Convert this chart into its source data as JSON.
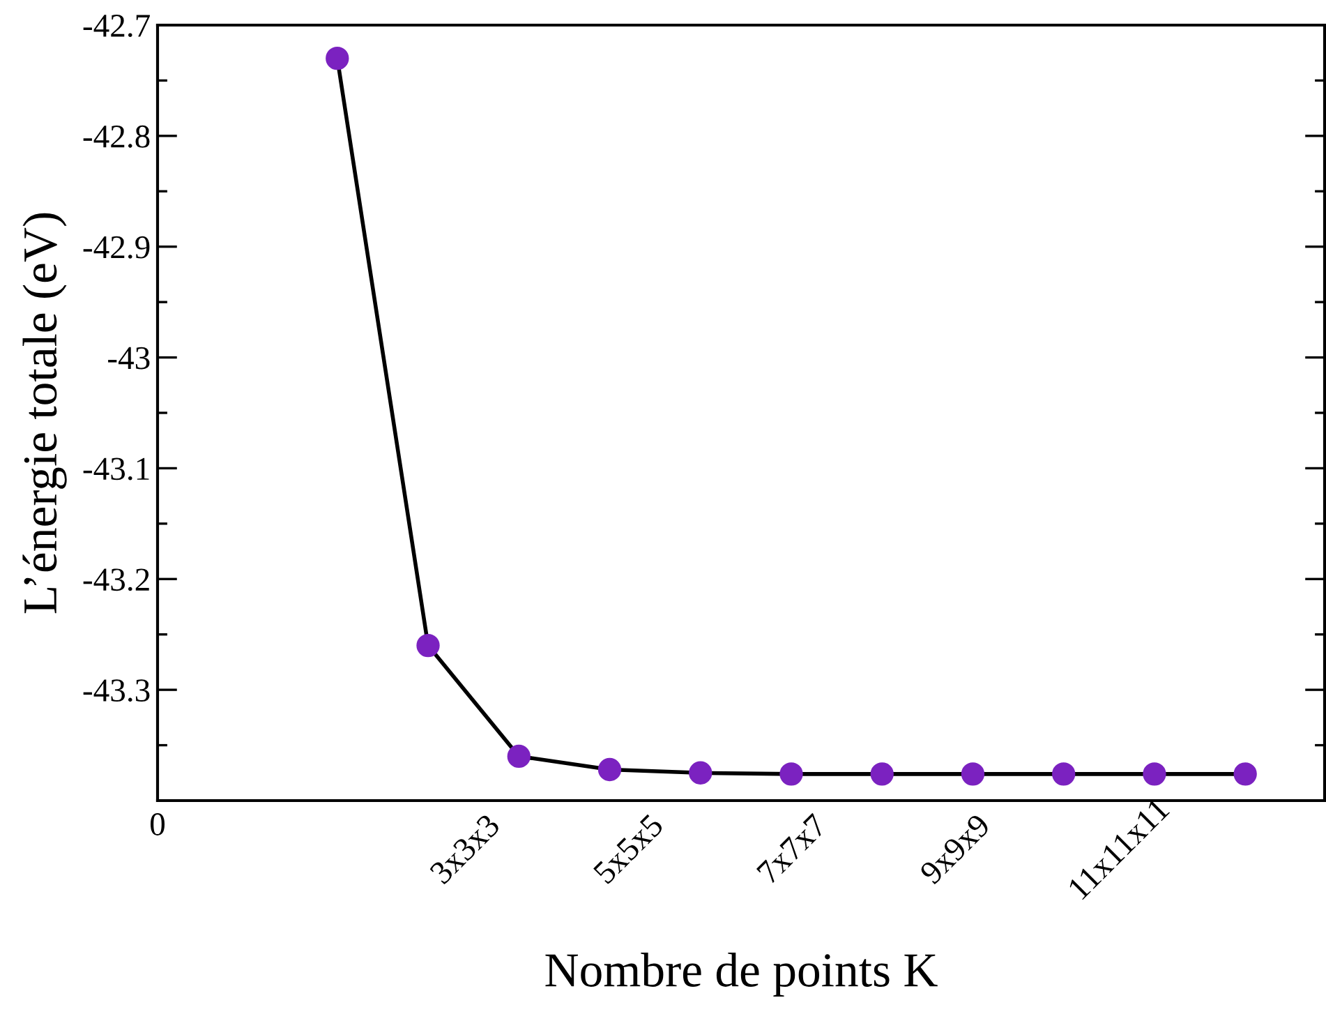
{
  "chart_data": {
    "type": "line",
    "xlabel": "Nombre de points K",
    "ylabel": "L’énergie totale (eV)",
    "categories": [
      null,
      null,
      null,
      null,
      null,
      null,
      null,
      null,
      null,
      null,
      null
    ],
    "series": [
      {
        "color": "#7b22c0",
        "values": [
          -42.73,
          -43.26,
          -43.36,
          -43.372,
          -43.375,
          -43.376,
          -43.376,
          -43.376,
          -43.376,
          -43.376,
          -43.376
        ]
      }
    ],
    "ylim": [
      -43.4,
      -42.7
    ],
    "yticks": [
      {
        "value": -42.7,
        "label": "-42.7"
      },
      {
        "value": -42.8,
        "label": "-42.8"
      },
      {
        "value": -42.9,
        "label": "-42.9"
      },
      {
        "value": -43,
        "label": "-43"
      },
      {
        "value": -43.1,
        "label": "-43.1"
      },
      {
        "value": -43.2,
        "label": "-43.2"
      },
      {
        "value": -43.3,
        "label": "-43.3"
      }
    ],
    "marker": "circle",
    "line_style": "solid",
    "annotations": [
      "0",
      "3x3x3",
      "5x5x5",
      "7x7x7",
      "9x9x9",
      "11x11x11"
    ]
  }
}
